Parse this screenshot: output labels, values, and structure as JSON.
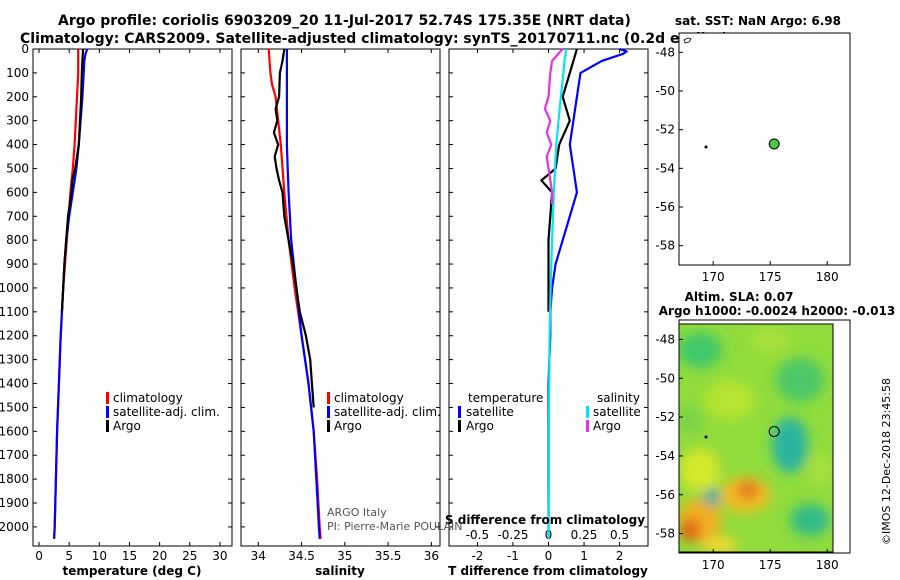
{
  "header": {
    "line1": "Argo profile: coriolis 6903209_20 11-Jul-2017 52.74S 175.35E (NRT data)",
    "line2": "Climatology: CARS2009. Satellite-adjusted climatology: synTS_20170711.nc (0.2d earlier)"
  },
  "colors": {
    "climatology": "#ff0000",
    "satellite": "#0000ff",
    "argo": "#000000",
    "satellite_salinity": "#00e5ee",
    "argo_salinity": "#e62fe6",
    "map_dot": "#44cc44"
  },
  "chart_data": [
    {
      "type": "line",
      "title": "temperature panel",
      "xlabel": "temperature (deg C)",
      "ylabel": "depth",
      "xlim": [
        -1,
        32
      ],
      "ylim": [
        2080,
        0
      ],
      "xticks": [
        "0",
        "5",
        "10",
        "15",
        "20",
        "25",
        "30"
      ],
      "yticks": [
        "0",
        "100",
        "200",
        "300",
        "400",
        "500",
        "600",
        "700",
        "800",
        "900",
        "1000",
        "1100",
        "1200",
        "1300",
        "1400",
        "1500",
        "1600",
        "1700",
        "1800",
        "1900",
        "2000"
      ],
      "legend": [
        "climatology",
        "satellite-adj. clim.",
        "Argo"
      ],
      "series": [
        {
          "name": "climatology",
          "color": "climatology",
          "depth": [
            0,
            100,
            200,
            300,
            400,
            500,
            600,
            700,
            800,
            900,
            1000,
            1200,
            1400,
            1600,
            1800,
            2000,
            2050
          ],
          "values": [
            6.5,
            6.5,
            6.3,
            6.1,
            5.9,
            5.6,
            5.2,
            4.9,
            4.6,
            4.3,
            4.0,
            3.6,
            3.3,
            3.0,
            2.8,
            2.6,
            2.5
          ]
        },
        {
          "name": "satellite-adj. clim.",
          "color": "satellite",
          "depth": [
            0,
            20,
            50,
            100,
            200,
            300,
            400,
            500,
            600,
            700,
            800,
            900,
            1000,
            1200,
            1400,
            1600,
            1800,
            2000,
            2050
          ],
          "values": [
            8.0,
            7.7,
            7.5,
            7.4,
            7.2,
            6.9,
            6.6,
            6.2,
            5.6,
            5.0,
            4.5,
            4.2,
            4.0,
            3.6,
            3.3,
            3.0,
            2.8,
            2.6,
            2.5
          ]
        },
        {
          "name": "Argo",
          "color": "argo",
          "depth": [
            0,
            50,
            100,
            200,
            300,
            400,
            500,
            550,
            600,
            700,
            800,
            900,
            1000,
            1100
          ],
          "values": [
            7.3,
            7.2,
            7.1,
            7.0,
            6.8,
            6.6,
            6.0,
            5.5,
            5.4,
            4.8,
            4.5,
            4.2,
            4.0,
            3.8
          ]
        }
      ]
    },
    {
      "type": "line",
      "title": "salinity panel",
      "xlabel": "salinity",
      "xlim": [
        33.8,
        36.1
      ],
      "ylim": [
        2080,
        0
      ],
      "xticks": [
        "34",
        "34.5",
        "35",
        "35.5",
        "36"
      ],
      "legend": [
        "climatology",
        "satellite-adj. clim.",
        "Argo"
      ],
      "annotation": [
        "ARGO Italy",
        "PI: Pierre-Marie POULAIN"
      ],
      "series": [
        {
          "name": "climatology",
          "color": "climatology",
          "depth": [
            0,
            100,
            150,
            200,
            300,
            400,
            600,
            800,
            1000,
            1200,
            1400,
            1600,
            1800,
            2000,
            2050
          ],
          "values": [
            34.12,
            34.14,
            34.16,
            34.2,
            34.23,
            34.26,
            34.3,
            34.35,
            34.42,
            34.5,
            34.58,
            34.64,
            34.68,
            34.71,
            34.72
          ]
        },
        {
          "name": "satellite-adj. clim.",
          "color": "satellite",
          "depth": [
            0,
            100,
            200,
            300,
            400,
            500,
            600,
            800,
            1000,
            1200,
            1400,
            1600,
            1800,
            2000,
            2050
          ],
          "values": [
            34.33,
            34.33,
            34.33,
            34.33,
            34.33,
            34.34,
            34.35,
            34.38,
            34.44,
            34.5,
            34.58,
            34.64,
            34.67,
            34.7,
            34.71
          ]
        },
        {
          "name": "Argo",
          "color": "argo",
          "depth": [
            0,
            50,
            100,
            200,
            250,
            300,
            350,
            400,
            450,
            500,
            550,
            600,
            700,
            800,
            900,
            1000,
            1100,
            1200,
            1300,
            1400,
            1500
          ],
          "values": [
            34.3,
            34.28,
            34.25,
            34.24,
            34.2,
            34.22,
            34.18,
            34.23,
            34.19,
            34.21,
            34.24,
            34.28,
            34.3,
            34.35,
            34.4,
            34.44,
            34.48,
            34.55,
            34.6,
            34.62,
            34.64
          ]
        }
      ]
    },
    {
      "type": "line",
      "title": "difference panel",
      "xlabel": "T difference from climatology",
      "xlabel2": "S difference from climatology",
      "xlim": [
        -2.8,
        2.8
      ],
      "ylim": [
        2080,
        0
      ],
      "xticks": [
        "-2",
        "-1",
        "0",
        "1",
        "2"
      ],
      "xticks2": [
        "-0.5",
        "-0.25",
        "0",
        "0.25",
        "0.5"
      ],
      "legend_left_title": "temperature",
      "legend_right_title": "salinity",
      "legend_left": [
        "satellite",
        "Argo"
      ],
      "legend_right": [
        "satellite",
        "Argo"
      ],
      "series": [
        {
          "name": "T satellite",
          "color": "satellite",
          "depth": [
            0,
            10,
            20,
            50,
            100,
            200,
            300,
            400,
            500,
            600,
            700,
            800,
            900,
            1000,
            1100,
            1200,
            1400,
            1600,
            1800,
            2000,
            2050
          ],
          "values": [
            2.0,
            2.2,
            2.1,
            1.5,
            0.9,
            0.8,
            0.7,
            0.6,
            0.7,
            0.8,
            0.6,
            0.4,
            0.2,
            0.1,
            0.05,
            0.05,
            0.0,
            0.0,
            0.0,
            0.0,
            0.0
          ]
        },
        {
          "name": "T Argo",
          "color": "argo",
          "depth": [
            0,
            50,
            100,
            200,
            300,
            400,
            500,
            550,
            600,
            700,
            800,
            900,
            1000,
            1100
          ],
          "values": [
            0.8,
            0.7,
            0.6,
            0.4,
            0.6,
            0.3,
            0.2,
            -0.2,
            0.1,
            0.05,
            0.0,
            0.0,
            0.0,
            0.0
          ]
        },
        {
          "name": "S satellite",
          "color": "satellite_salinity",
          "depth": [
            0,
            50,
            100,
            200,
            300,
            400,
            600,
            800,
            1000,
            1200,
            1400,
            1600,
            1800,
            2000,
            2050
          ],
          "values": [
            0.5,
            0.45,
            0.42,
            0.35,
            0.28,
            0.22,
            0.15,
            0.1,
            0.06,
            0.03,
            0.02,
            0.01,
            0.01,
            0.0,
            0.0
          ]
        },
        {
          "name": "S Argo",
          "color": "argo_salinity",
          "depth": [
            0,
            50,
            100,
            200,
            250,
            300,
            350,
            400,
            450,
            500,
            550,
            600,
            650
          ],
          "values": [
            0.4,
            0.1,
            0.05,
            0.0,
            -0.1,
            0.05,
            -0.05,
            0.08,
            -0.05,
            0.0,
            0.05,
            0.1,
            0.1
          ]
        }
      ]
    },
    {
      "type": "scatter",
      "title": "sat. SST: NaN Argo: 6.98",
      "xlim": [
        167,
        182
      ],
      "ylim": [
        -59,
        -47
      ],
      "xticks": [
        "170",
        "175",
        "180"
      ],
      "yticks": [
        "-48",
        "-50",
        "-52",
        "-54",
        "-56",
        "-58"
      ],
      "points": [
        {
          "lon": 175.35,
          "lat": -52.74
        }
      ]
    },
    {
      "type": "heatmap",
      "title": "Altim. SLA: 0.07",
      "subtitle": "Argo h1000: -0.0024 h2000: -0.013",
      "xlim": [
        167,
        182
      ],
      "ylim": [
        -59,
        -47
      ],
      "xticks": [
        "170",
        "175",
        "180"
      ],
      "yticks": [
        "-48",
        "-50",
        "-52",
        "-54",
        "-56",
        "-58"
      ],
      "points": [
        {
          "lon": 175.35,
          "lat": -52.74
        }
      ],
      "credit": "©IMOS 12-Dec-2018 23:45:58"
    }
  ]
}
